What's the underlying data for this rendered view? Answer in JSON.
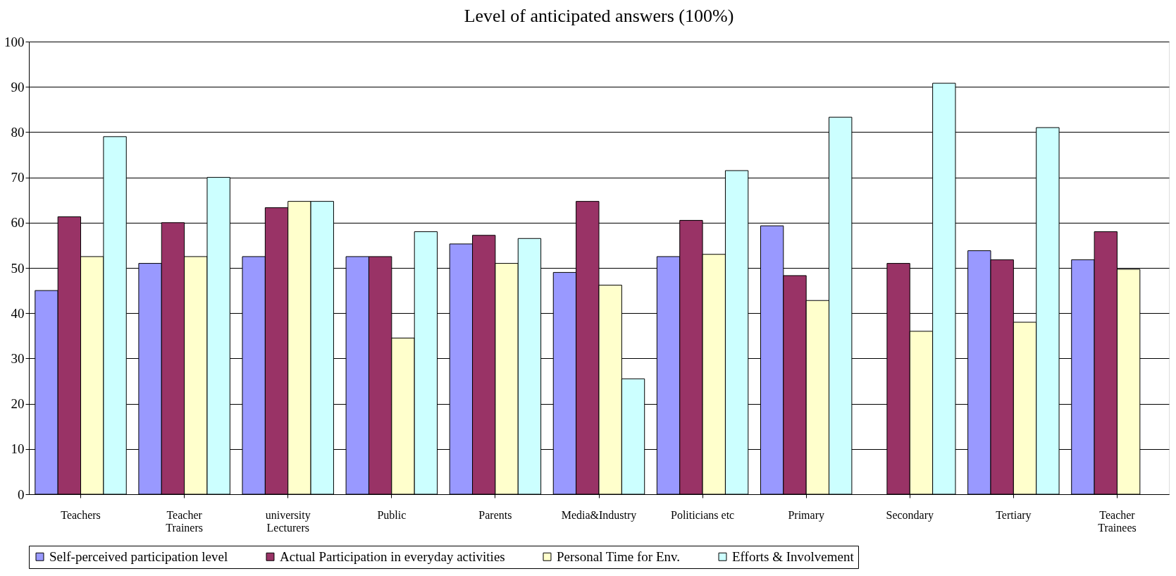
{
  "chart_data": {
    "type": "bar",
    "title": "Level of anticipated answers (100%)",
    "categories": [
      "Teachers",
      "Teacher\nTrainers",
      "university\nLecturers",
      "Public",
      "Parents",
      "Media&Industry",
      "Politicians etc",
      "Primary",
      "Secondary",
      "Tertiary",
      "Teacher\nTrainees"
    ],
    "series": [
      {
        "name": "Self-perceived participation level",
        "color": "#9999ff",
        "values": [
          45,
          51,
          52.5,
          52.5,
          55.3,
          49,
          52.5,
          59.3,
          null,
          53.8,
          51.8
        ]
      },
      {
        "name": "Actual Participation in everyday activities",
        "color": "#993366",
        "values": [
          61.3,
          60,
          63.3,
          52.5,
          57.2,
          64.7,
          60.5,
          48.3,
          51,
          51.8,
          58
        ]
      },
      {
        "name": "Personal Time for Env.",
        "color": "#ffffcc",
        "values": [
          52.5,
          52.5,
          64.7,
          34.5,
          51,
          46.2,
          53,
          42.8,
          36,
          38,
          49.7
        ]
      },
      {
        "name": "Efforts & Involvement",
        "color": "#ccffff",
        "values": [
          79,
          70,
          64.7,
          58,
          56.5,
          25.5,
          71.5,
          83.3,
          90.8,
          81,
          null
        ]
      }
    ],
    "ylim": [
      0,
      100
    ],
    "yticks": [
      0,
      10,
      20,
      30,
      40,
      50,
      60,
      70,
      80,
      90,
      100
    ],
    "grid": "y",
    "legend": "bottom"
  }
}
